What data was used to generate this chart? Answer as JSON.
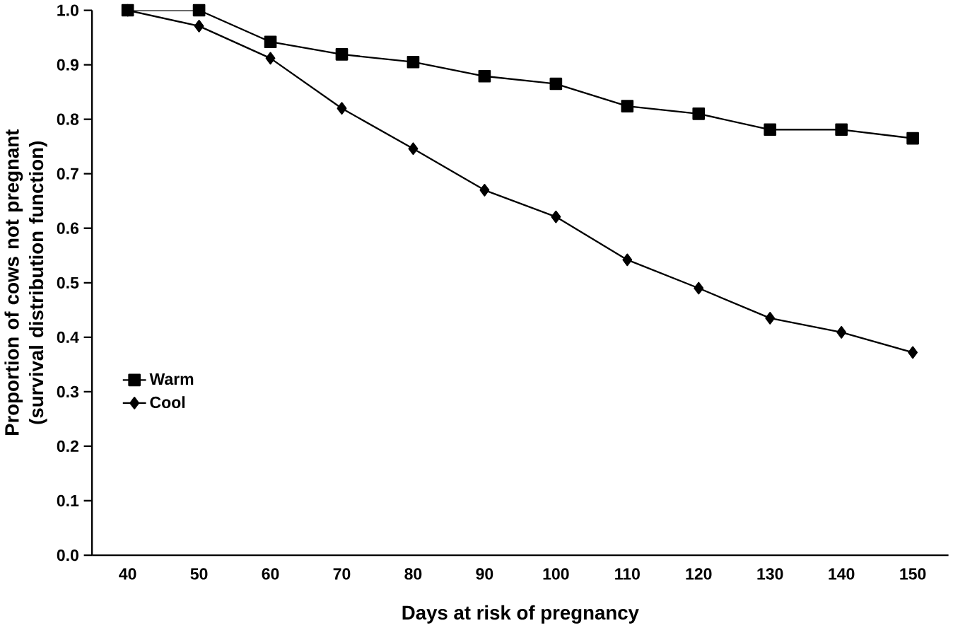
{
  "chart_data": {
    "type": "line",
    "xlabel": "Days at risk of pregnancy",
    "ylabel": "Proportion of cows not pregnant (survival distribution function)",
    "categories": [
      "40",
      "50",
      "60",
      "70",
      "80",
      "90",
      "100",
      "110",
      "120",
      "130",
      "140",
      "150"
    ],
    "series": [
      {
        "name": "Warm",
        "color": "#000000",
        "marker": "square",
        "values": [
          1.0,
          1.0,
          0.942,
          0.919,
          0.905,
          0.879,
          0.865,
          0.824,
          0.81,
          0.781,
          0.781,
          0.765
        ]
      },
      {
        "name": "Cool",
        "color": "#000000",
        "marker": "diamond",
        "values": [
          1.0,
          0.971,
          0.912,
          0.82,
          0.746,
          0.67,
          0.621,
          0.542,
          0.49,
          0.435,
          0.409,
          0.372
        ]
      }
    ],
    "ylim": [
      0,
      1.0
    ],
    "yticks": [
      {
        "value": 0,
        "label": "0.0"
      },
      0.1,
      0.2,
      0.3,
      0.4,
      0.5,
      0.6,
      0.7,
      0.8,
      0.9,
      {
        "value": 1.0,
        "label": "1.0"
      }
    ],
    "legend": "left",
    "line_style": "solid",
    "grid": false
  }
}
